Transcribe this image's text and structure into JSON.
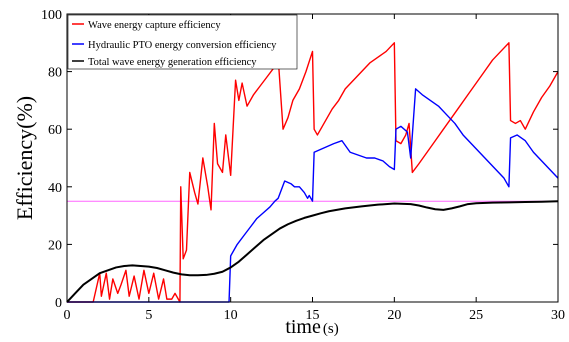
{
  "chart_data": {
    "type": "line",
    "xlabel": "time",
    "xlabel_unit": "(s)",
    "ylabel": "Efficiency(%)",
    "xlim": [
      0,
      30
    ],
    "ylim": [
      0,
      100
    ],
    "xticks": [
      0,
      5,
      10,
      15,
      20,
      25,
      30
    ],
    "yticks": [
      0,
      20,
      40,
      60,
      80,
      100
    ],
    "grid": false,
    "legend_position": "top-left",
    "reference_line": {
      "y": 35,
      "color": "#ff66ff"
    },
    "series": [
      {
        "name": "Wave energy capture efficiency",
        "color": "#ff0000",
        "x": [
          0,
          1.6,
          2,
          2.1,
          2.4,
          2.6,
          2.8,
          3.1,
          3.3,
          3.6,
          3.8,
          4.1,
          4.4,
          4.7,
          5.0,
          5.3,
          5.6,
          5.9,
          6.1,
          6.4,
          6.6,
          6.9,
          6.95,
          7.1,
          7.3,
          7.5,
          7.8,
          8.0,
          8.3,
          8.6,
          8.8,
          9.0,
          9.2,
          9.5,
          9.7,
          10.0,
          10.3,
          10.5,
          10.7,
          11.0,
          11.4,
          11.8,
          12.2,
          12.6,
          12.9,
          13.2,
          13.5,
          13.8,
          14.2,
          14.6,
          15.0,
          15.1,
          15.3,
          15.6,
          15.9,
          16.2,
          16.6,
          17.0,
          17.5,
          18.0,
          18.5,
          19.0,
          19.5,
          20.0,
          20.1,
          20.4,
          20.7,
          20.9,
          21.1,
          21.5,
          22.0,
          22.5,
          23.0,
          23.5,
          24.0,
          24.5,
          25.0,
          25.5,
          26.0,
          26.5,
          27.0,
          27.1,
          27.4,
          27.7,
          28.0,
          28.5,
          29.0,
          29.5,
          30.0
        ],
        "y": [
          0,
          0,
          10,
          2,
          10,
          1,
          8,
          3,
          6,
          11,
          2,
          9,
          1,
          11,
          3,
          10,
          1,
          8,
          1,
          1,
          3,
          0,
          40,
          15,
          18,
          45,
          38,
          34,
          50,
          40,
          32,
          62,
          48,
          45,
          58,
          44,
          77,
          70,
          76,
          68,
          72,
          75,
          78,
          81,
          85,
          60,
          64,
          70,
          74,
          80,
          87,
          60,
          58,
          61,
          64,
          67,
          70,
          74,
          77,
          80,
          83,
          85,
          87,
          90,
          56,
          55,
          58,
          62,
          45,
          48,
          52,
          56,
          60,
          64,
          68,
          72,
          76,
          80,
          84,
          87,
          90,
          63,
          62,
          63,
          60,
          66,
          71,
          75,
          80
        ]
      },
      {
        "name": "Hydraulic PTO energy conversion efficiency",
        "color": "#0000ff",
        "x": [
          0,
          9.9,
          10.0,
          10.4,
          10.8,
          11.2,
          11.6,
          12.0,
          12.4,
          12.7,
          12.9,
          13.3,
          13.7,
          13.9,
          14.2,
          14.5,
          14.7,
          14.8,
          15.0,
          15.1,
          15.5,
          15.9,
          16.3,
          16.8,
          17.3,
          17.8,
          18.3,
          18.8,
          19.3,
          19.7,
          20.0,
          20.1,
          20.4,
          20.8,
          21.0,
          21.3,
          21.7,
          22.2,
          22.7,
          23.2,
          23.7,
          24.2,
          24.7,
          25.2,
          25.7,
          26.2,
          26.7,
          26.9,
          27.0,
          27.1,
          27.5,
          28.0,
          28.5,
          29.0,
          29.5,
          30.0
        ],
        "y": [
          0,
          0,
          16,
          20,
          23,
          26,
          29,
          31,
          33,
          35,
          36,
          42,
          41,
          40,
          40,
          38,
          36,
          37,
          35,
          52,
          53,
          54,
          55,
          56,
          52,
          51,
          50,
          50,
          49,
          47,
          46,
          60,
          61,
          59,
          50,
          74,
          72,
          70,
          68,
          65,
          62,
          58,
          55,
          52,
          49,
          46,
          43,
          41,
          40,
          57,
          58,
          56,
          52,
          49,
          46,
          43
        ]
      },
      {
        "name": "Total wave energy generation efficiency",
        "color": "#000000",
        "x": [
          0,
          0.5,
          1,
          1.5,
          2,
          2.5,
          3,
          3.5,
          4,
          4.5,
          5,
          5.5,
          6,
          6.5,
          7,
          7.5,
          8,
          8.5,
          9,
          9.5,
          10,
          10.5,
          11,
          11.5,
          12,
          12.5,
          13,
          13.5,
          14,
          14.5,
          15,
          15.5,
          16,
          17,
          18,
          19,
          20,
          21,
          21.5,
          22,
          22.5,
          23,
          23.5,
          24,
          24.5,
          25,
          26,
          27,
          28,
          29,
          30
        ],
        "y": [
          0,
          3,
          6,
          8,
          10,
          11,
          12,
          12.5,
          12.7,
          12.5,
          12.3,
          11.8,
          11.0,
          10.2,
          9.6,
          9.3,
          9.3,
          9.4,
          9.8,
          10.5,
          12.0,
          14.0,
          16.5,
          19.0,
          21.5,
          23.5,
          25.5,
          27.0,
          28.2,
          29.2,
          30.0,
          30.8,
          31.5,
          32.5,
          33.2,
          33.8,
          34.2,
          34.0,
          33.5,
          32.8,
          32.2,
          32.0,
          32.5,
          33.2,
          34.0,
          34.3,
          34.5,
          34.6,
          34.7,
          34.8,
          35.0
        ]
      }
    ]
  }
}
